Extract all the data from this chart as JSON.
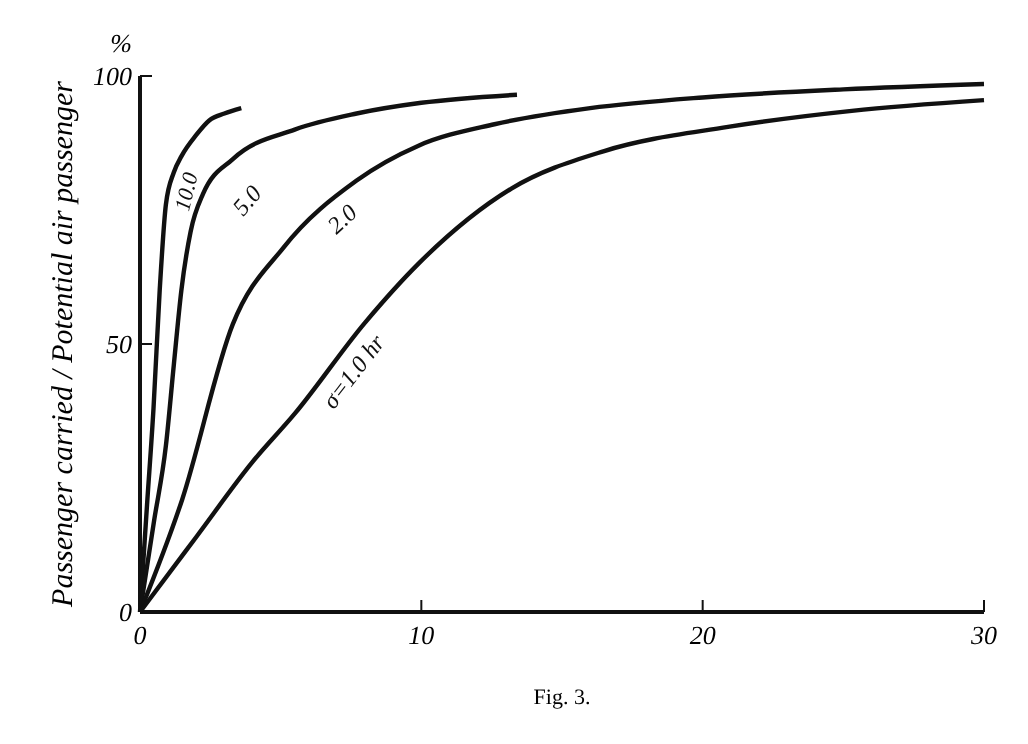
{
  "chart_data": {
    "type": "line",
    "ylabel": "Passenger carried / Potential air passenger",
    "xlim": [
      0,
      30
    ],
    "ylim": [
      0,
      100
    ],
    "xticks": [
      0,
      10,
      20,
      30
    ],
    "yticks": [
      0,
      50,
      100
    ],
    "grid": false,
    "marker": "none",
    "line_style": "solid",
    "annotations": [
      "%",
      "Fig. 3."
    ],
    "series": [
      {
        "name": "10.0",
        "color": "#111111",
        "x": [
          0,
          0.25,
          0.48,
          0.7,
          0.92,
          1.2,
          1.47,
          2,
          2.46,
          3,
          3.6
        ],
        "values": [
          0,
          20,
          38,
          60,
          76,
          82,
          85,
          89,
          91.7,
          93,
          94
        ]
      },
      {
        "name": "5.0",
        "color": "#111111",
        "x": [
          0,
          0.5,
          0.92,
          1.2,
          1.47,
          1.8,
          2.24,
          3.3,
          5.5,
          7.7,
          10,
          13.4
        ],
        "values": [
          0,
          17,
          31,
          46,
          60,
          71,
          78,
          84.5,
          90,
          93,
          95,
          96.5
        ]
      },
      {
        "name": "2.0",
        "color": "#111111",
        "x": [
          0,
          1.5,
          3.3,
          5.1,
          7.7,
          9.9,
          12.6,
          16,
          20,
          25,
          30
        ],
        "values": [
          0,
          21,
          53.7,
          68,
          80.5,
          87,
          91,
          94,
          96,
          97.5,
          98.5
        ]
      },
      {
        "name": "σ=1.0 hr",
        "color": "#111111",
        "x": [
          0,
          2,
          4,
          5.5,
          8,
          9.9,
          13.2,
          16.5,
          20.9,
          25.3,
          30
        ],
        "values": [
          0,
          14,
          28,
          37,
          54,
          65,
          79,
          86,
          90.5,
          93.5,
          95.5
        ]
      }
    ]
  }
}
